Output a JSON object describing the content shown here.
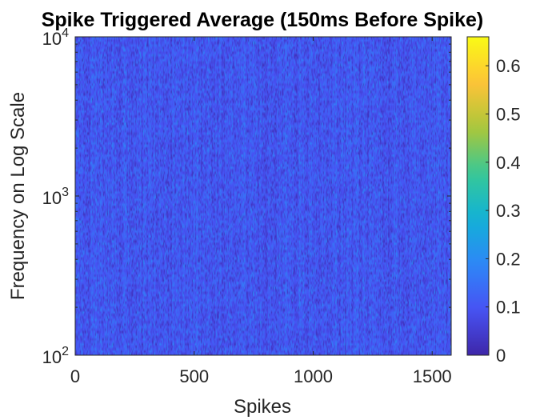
{
  "chart_data": {
    "type": "heatmap",
    "title": "Spike Triggered Average (150ms Before Spike)",
    "xlabel": "Spikes",
    "ylabel": "Frequency on Log Scale",
    "xlim": [
      0,
      1580
    ],
    "xticks": [
      0,
      500,
      1000,
      1500
    ],
    "xtick_labels": [
      "0",
      "500",
      "1000",
      "1500"
    ],
    "ylim": [
      100,
      10000
    ],
    "yscale": "log",
    "yticks": [
      100,
      1000,
      10000
    ],
    "ytick_labels": [
      {
        "base": "10",
        "exp": "2"
      },
      {
        "base": "10",
        "exp": "3"
      },
      {
        "base": "10",
        "exp": "4"
      }
    ],
    "colorbar": {
      "colormap": "parula",
      "clim": [
        0,
        0.66
      ],
      "ticks": [
        0,
        0.1,
        0.2,
        0.3,
        0.4,
        0.5,
        0.6
      ],
      "tick_labels": [
        "0",
        "0.1",
        "0.2",
        "0.3",
        "0.4",
        "0.5",
        "0.6"
      ]
    },
    "values_description_levels": {
      "typical_min": 0.02,
      "typical_mode": 0.1,
      "typical_max": 0.25
    },
    "grid": false
  }
}
